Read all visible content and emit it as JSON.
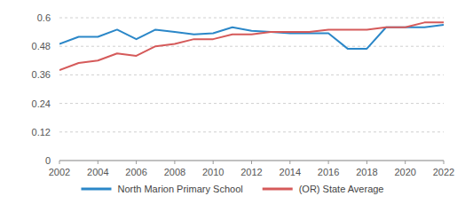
{
  "chart_data": {
    "type": "line",
    "x": [
      2002,
      2003,
      2004,
      2005,
      2006,
      2007,
      2008,
      2009,
      2010,
      2011,
      2012,
      2013,
      2014,
      2015,
      2016,
      2017,
      2018,
      2019,
      2020,
      2021,
      2022
    ],
    "series": [
      {
        "name": "North Marion Primary School",
        "color": "#2b87c8",
        "values": [
          0.49,
          0.52,
          0.52,
          0.55,
          0.51,
          0.55,
          0.54,
          0.53,
          0.535,
          0.56,
          0.545,
          0.54,
          0.535,
          0.535,
          0.535,
          0.47,
          0.47,
          0.56,
          0.56,
          0.56,
          0.57
        ]
      },
      {
        "name": "(OR) State Average",
        "color": "#d55a5a",
        "values": [
          0.38,
          0.41,
          0.42,
          0.45,
          0.44,
          0.48,
          0.49,
          0.51,
          0.51,
          0.53,
          0.53,
          0.54,
          0.54,
          0.54,
          0.55,
          0.55,
          0.55,
          0.56,
          0.56,
          0.58,
          0.58
        ]
      }
    ],
    "xlim": [
      2002,
      2022
    ],
    "xticks": [
      2002,
      2004,
      2006,
      2008,
      2010,
      2012,
      2014,
      2016,
      2018,
      2020,
      2022
    ],
    "ylim": [
      0,
      0.6
    ],
    "yticks": [
      0,
      0.12,
      0.24,
      0.36,
      0.48,
      0.6
    ],
    "grid": true,
    "legend": "bottom"
  }
}
